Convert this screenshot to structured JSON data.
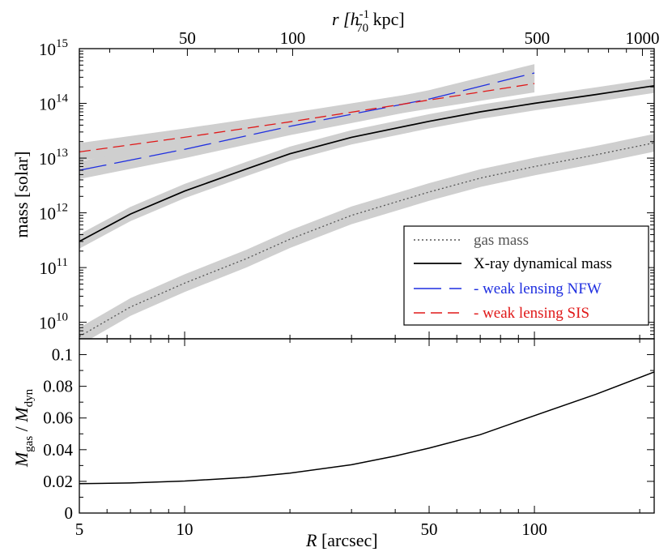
{
  "chart_data": [
    {
      "panel": "upper",
      "type": "line",
      "title": "",
      "x_scale": "log",
      "y_scale": "log",
      "xlim": [
        5,
        220
      ],
      "ylim": [
        5000000000.0,
        1000000000000000.0
      ],
      "ylabel": "mass [solar]",
      "top_axis": {
        "label_prefix": "r [h",
        "label_sup": "-1",
        "label_sub": "70",
        "label_suffix": " kpc]",
        "ticks": [
          {
            "kpc": 50,
            "label": "50"
          },
          {
            "kpc": 100,
            "label": "100"
          },
          {
            "kpc": 500,
            "label": "500"
          },
          {
            "kpc": 1000,
            "label": "1000"
          }
        ],
        "arcsec_per_kpc": 0.2036
      },
      "y_ticks": [
        {
          "value": 10000000000.0,
          "base": "10",
          "exp": "10"
        },
        {
          "value": 100000000000.0,
          "base": "10",
          "exp": "11"
        },
        {
          "value": 1000000000000.0,
          "base": "10",
          "exp": "12"
        },
        {
          "value": 10000000000000.0,
          "base": "10",
          "exp": "13"
        },
        {
          "value": 100000000000000.0,
          "base": "10",
          "exp": "14"
        },
        {
          "value": 1000000000000000.0,
          "base": "10",
          "exp": "15"
        }
      ],
      "series": [
        {
          "name": "gas mass",
          "style": "dotted",
          "color": "#555555",
          "x": [
            5,
            7,
            10,
            15,
            20,
            30,
            50,
            70,
            100,
            150,
            220
          ],
          "y": [
            5500000000.0,
            19000000000.0,
            52000000000.0,
            145000000000.0,
            330000000000.0,
            900000000000.0,
            2400000000000.0,
            4300000000000.0,
            7000000000000.0,
            11500000000000.0,
            19000000000000.0
          ],
          "band_factor": 1.45
        },
        {
          "name": "X-ray dynamical mass",
          "style": "solid",
          "color": "#000000",
          "x": [
            5,
            7,
            10,
            15,
            20,
            30,
            50,
            70,
            100,
            150,
            220
          ],
          "y": [
            300000000000.0,
            950000000000.0,
            2500000000000.0,
            6300000000000.0,
            12000000000000.0,
            24000000000000.0,
            47000000000000.0,
            70000000000000.0,
            100000000000000.0,
            145000000000000.0,
            210000000000000.0
          ],
          "band_factor": 1.35
        },
        {
          "name": "- weak lensing NFW",
          "style": "long-dash",
          "color": "#1f2fe0",
          "x": [
            5,
            10,
            20,
            50,
            100
          ],
          "y": [
            6000000000000.0,
            14500000000000.0,
            38000000000000.0,
            120000000000000.0,
            360000000000000.0
          ],
          "band_factor": 1.45
        },
        {
          "name": "- weak lensing SIS",
          "style": "dashed",
          "color": "#e01818",
          "x": [
            5,
            10,
            20,
            50,
            100
          ],
          "y": [
            13000000000000.0,
            24000000000000.0,
            46000000000000.0,
            115000000000000.0,
            230000000000000.0
          ],
          "band_factor": 1.45
        }
      ],
      "legend": {
        "placement": "lower-right",
        "entries": [
          {
            "label": "gas mass",
            "color": "#555555",
            "style": "dotted"
          },
          {
            "label": "X-ray dynamical mass",
            "color": "#000000",
            "style": "solid"
          },
          {
            "label": "- weak lensing NFW",
            "color": "#1f2fe0",
            "style": "long-dash"
          },
          {
            "label": "- weak lensing SIS",
            "color": "#e01818",
            "style": "dashed"
          }
        ]
      }
    },
    {
      "panel": "lower",
      "type": "line",
      "x_scale": "log",
      "y_scale": "linear",
      "xlim": [
        5,
        220
      ],
      "ylim": [
        0,
        0.11
      ],
      "xlabel_symbol": "R",
      "xlabel_unit": " [arcsec]",
      "ylabel_num": "M",
      "ylabel_num_sub": "gas",
      "ylabel_sep": " / ",
      "ylabel_den": "M",
      "ylabel_den_sub": "dyn",
      "x_ticks": [
        {
          "value": 5,
          "label": "5"
        },
        {
          "value": 10,
          "label": "10"
        },
        {
          "value": 50,
          "label": "50"
        },
        {
          "value": 100,
          "label": "100"
        }
      ],
      "y_ticks": [
        {
          "value": 0,
          "label": "0"
        },
        {
          "value": 0.02,
          "label": "0.02"
        },
        {
          "value": 0.04,
          "label": "0.04"
        },
        {
          "value": 0.06,
          "label": "0.06"
        },
        {
          "value": 0.08,
          "label": "0.08"
        },
        {
          "value": 0.1,
          "label": "0.1"
        }
      ],
      "series": [
        {
          "name": "gas mass fraction",
          "color": "#000000",
          "x": [
            5,
            7,
            10,
            15,
            20,
            30,
            40,
            50,
            70,
            100,
            150,
            220
          ],
          "y": [
            0.0185,
            0.019,
            0.0202,
            0.0225,
            0.0252,
            0.0305,
            0.036,
            0.041,
            0.0495,
            0.0615,
            0.075,
            0.089
          ]
        }
      ]
    }
  ]
}
